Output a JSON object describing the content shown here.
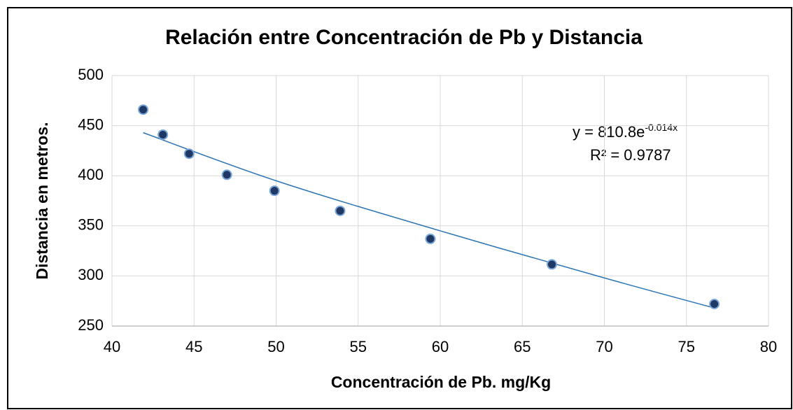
{
  "chart_data": {
    "type": "scatter",
    "title": "Relación entre Concentración de Pb y Distancia",
    "x_label": "Concentración de Pb. mg/Kg",
    "y_label": "Distancia en metros.",
    "series": [
      {
        "name": "Distancia",
        "color": "#1f3864",
        "x": [
          41.9,
          43.1,
          44.7,
          47.0,
          49.9,
          53.9,
          59.4,
          66.8,
          76.7
        ],
        "values": [
          466,
          441,
          422,
          401,
          385,
          365,
          337,
          311.5,
          272
        ]
      }
    ],
    "trendline": {
      "color": "#2e75b6",
      "x": [
        41.9,
        50,
        60,
        70,
        76.7
      ],
      "values": [
        443,
        395,
        345,
        298,
        268
      ],
      "equation": "y = 810.8e",
      "exponent": "-0.014x",
      "r2": "R² = 0.9787"
    },
    "xlim": [
      40,
      80
    ],
    "xticks": [
      40,
      45,
      50,
      55,
      60,
      65,
      70,
      75,
      80
    ],
    "ylim": [
      250,
      500
    ],
    "yticks": [
      250,
      300,
      350,
      400,
      450,
      500
    ],
    "grid": true
  }
}
